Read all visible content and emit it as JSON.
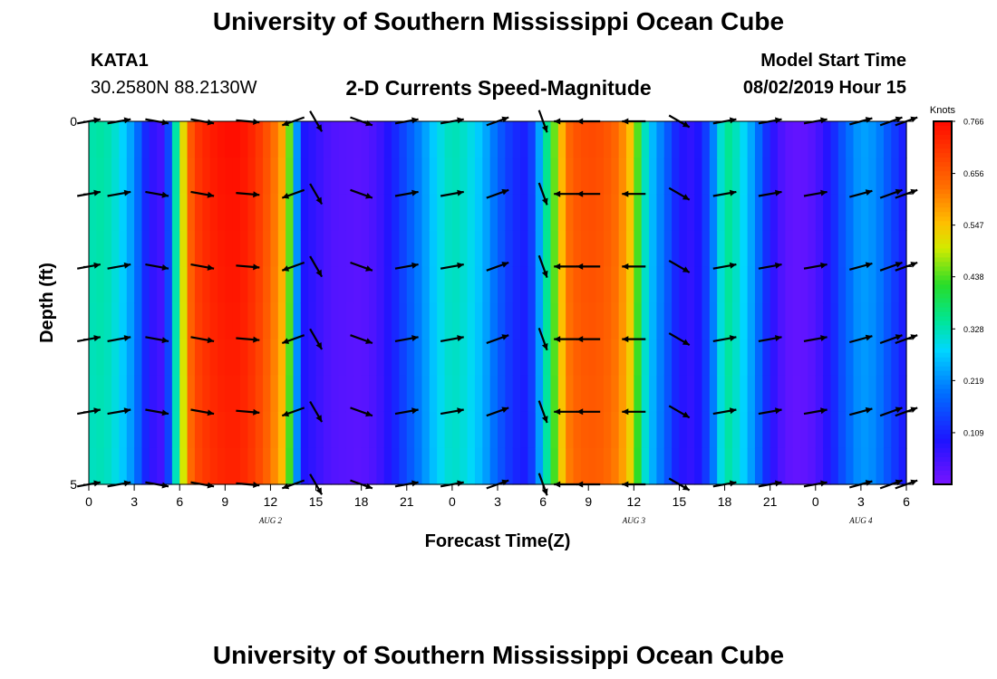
{
  "header": {
    "title": "University of Southern Mississippi Ocean Cube",
    "station": "KATA1",
    "coords": "30.2580N 88.2130W",
    "subtitle": "2-D Currents Speed-Magnitude",
    "model_start_label": "Model Start Time",
    "model_start_value": "08/02/2019 Hour 15"
  },
  "footer": {
    "title": "University of Southern Mississippi Ocean Cube"
  },
  "chart_data": {
    "type": "heatmap",
    "title": "2-D Currents Speed-Magnitude",
    "xlabel": "Forecast Time(Z)",
    "ylabel": "Depth (ft)",
    "x_range_hours": [
      0,
      54
    ],
    "y_range_ft": [
      0,
      5
    ],
    "x_ticks": [
      "0",
      "3",
      "6",
      "9",
      "12",
      "15",
      "18",
      "21",
      "0",
      "3",
      "6",
      "9",
      "12",
      "15",
      "18",
      "21",
      "0",
      "3",
      "6"
    ],
    "y_ticks": [
      "0",
      "5"
    ],
    "date_labels": [
      {
        "label": "AUG 2",
        "hour": 12
      },
      {
        "label": "AUG 3",
        "hour": 36
      },
      {
        "label": "AUG 4",
        "hour": 51
      }
    ],
    "colorbar": {
      "unit": "Knots",
      "min": 0.0,
      "max": 0.766,
      "ticks": [
        "0.766",
        "0.656",
        "0.547",
        "0.438",
        "0.328",
        "0.219",
        "0.109"
      ]
    },
    "speed_profile_knots": [
      [
        0,
        0.33
      ],
      [
        1,
        0.34
      ],
      [
        2,
        0.3
      ],
      [
        3,
        0.22
      ],
      [
        3.5,
        0.15
      ],
      [
        4,
        0.08
      ],
      [
        5,
        0.05
      ],
      [
        5.5,
        0.25
      ],
      [
        6,
        0.42
      ],
      [
        6.5,
        0.62
      ],
      [
        7,
        0.7
      ],
      [
        8,
        0.74
      ],
      [
        9,
        0.76
      ],
      [
        10,
        0.76
      ],
      [
        11,
        0.72
      ],
      [
        12,
        0.65
      ],
      [
        13,
        0.55
      ],
      [
        13.5,
        0.35
      ],
      [
        14,
        0.1
      ],
      [
        15,
        0.07
      ],
      [
        16,
        0.04
      ],
      [
        18,
        0.03
      ],
      [
        19,
        0.05
      ],
      [
        20,
        0.1
      ],
      [
        21,
        0.16
      ],
      [
        22,
        0.22
      ],
      [
        23,
        0.29
      ],
      [
        24,
        0.33
      ],
      [
        25,
        0.31
      ],
      [
        26,
        0.26
      ],
      [
        27,
        0.18
      ],
      [
        28,
        0.12
      ],
      [
        29,
        0.1
      ],
      [
        29.5,
        0.18
      ],
      [
        30,
        0.3
      ],
      [
        31,
        0.5
      ],
      [
        31.5,
        0.62
      ],
      [
        32,
        0.66
      ],
      [
        33,
        0.68
      ],
      [
        34,
        0.67
      ],
      [
        35,
        0.63
      ],
      [
        36,
        0.52
      ],
      [
        36.5,
        0.36
      ],
      [
        37,
        0.28
      ],
      [
        38,
        0.19
      ],
      [
        39,
        0.09
      ],
      [
        40,
        0.07
      ],
      [
        41,
        0.16
      ],
      [
        42,
        0.36
      ],
      [
        43,
        0.31
      ],
      [
        44,
        0.22
      ],
      [
        45,
        0.09
      ],
      [
        46,
        0.03
      ],
      [
        47,
        0.02
      ],
      [
        48,
        0.04
      ],
      [
        49,
        0.1
      ],
      [
        50,
        0.18
      ],
      [
        51,
        0.24
      ],
      [
        52,
        0.22
      ],
      [
        53,
        0.15
      ],
      [
        54,
        0.09
      ]
    ],
    "vectors": {
      "times_hours": [
        0,
        2,
        4.5,
        7.5,
        10.5,
        13.5,
        15,
        18,
        21,
        24,
        27,
        30,
        31.5,
        33,
        36,
        39,
        42,
        45,
        48,
        51,
        53,
        54
      ],
      "depths_ft": [
        0,
        1,
        2,
        3,
        4,
        5
      ],
      "directions_deg": [
        80,
        80,
        100,
        100,
        95,
        250,
        150,
        110,
        80,
        80,
        70,
        160,
        270,
        270,
        270,
        120,
        80,
        80,
        80,
        75,
        70,
        70
      ]
    }
  }
}
